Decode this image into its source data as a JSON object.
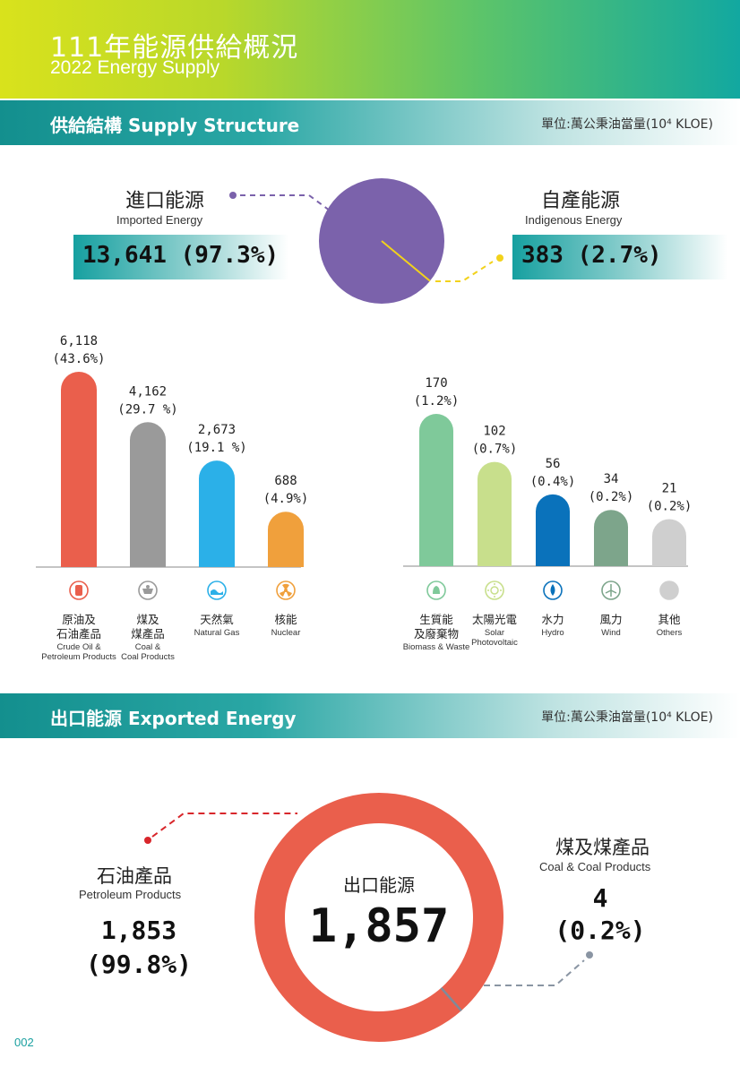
{
  "header": {
    "title_zh": "111年能源供給概況",
    "title_en": "2022 Energy Supply"
  },
  "supply_section": {
    "title": "供給結構 Supply Structure",
    "unit": "單位:萬公秉油當量(10⁴ KLOE)",
    "imported": {
      "label_zh": "進口能源",
      "label_en": "Imported Energy",
      "value_text": "13,641  (97.3%)"
    },
    "indigenous": {
      "label_zh": "自產能源",
      "label_en": "Indigenous Energy",
      "value_text": "383 (2.7%)"
    }
  },
  "export_section": {
    "title": "出口能源 Exported Energy",
    "unit": "單位:萬公秉油當量(10⁴ KLOE)",
    "center_label": "出口能源",
    "center_value": "1,857",
    "petroleum": {
      "label_zh": "石油產品",
      "label_en": "Petroleum Products",
      "value": "1,853",
      "pct": "(99.8%)"
    },
    "coal": {
      "label_zh": "煤及煤產品",
      "label_en": "Coal & Coal Products",
      "value": "4",
      "pct": "(0.2%)"
    }
  },
  "page_number": "002",
  "chart_data": [
    {
      "type": "pie",
      "categories": [
        "進口能源 Imported Energy",
        "自產能源 Indigenous Energy"
      ],
      "values": [
        13641,
        383
      ],
      "percentages": [
        97.3,
        2.7
      ],
      "colors": [
        "#7b62ab",
        "#7b62ab"
      ]
    },
    {
      "type": "bar",
      "categories": [
        "原油及石油產品",
        "煤及煤產品",
        "天然氣",
        "核能"
      ],
      "values": [
        6118,
        4162,
        2673,
        688
      ],
      "value_labels": [
        "6,118",
        "4,162",
        "2,673",
        "688"
      ],
      "percent_labels": [
        "(43.6%)",
        "(29.7 %)",
        "(19.1 %)",
        "(4.9%)"
      ],
      "category_labels_zh": [
        [
          "原油及",
          "石油產品"
        ],
        [
          "煤及",
          "煤產品"
        ],
        [
          "天然氣"
        ],
        [
          "核能"
        ]
      ],
      "category_labels_en": [
        [
          "Crude Oil &",
          "Petroleum Products"
        ],
        [
          "Coal &",
          "Coal Products"
        ],
        [
          "Natural Gas"
        ],
        [
          "Nuclear"
        ]
      ],
      "colors": [
        "#ea5f4c",
        "#9a9a9a",
        "#2bb0e8",
        "#f0a03c"
      ],
      "icons": [
        "oil-barrel-icon",
        "coal-cart-icon",
        "natural-gas-icon",
        "nuclear-icon"
      ]
    },
    {
      "type": "bar",
      "categories": [
        "生質能及廢棄物",
        "太陽光電",
        "水力",
        "風力",
        "其他"
      ],
      "values": [
        170,
        102,
        56,
        34,
        21
      ],
      "value_labels": [
        "170",
        "102",
        "56",
        "34",
        "21"
      ],
      "percent_labels": [
        "(1.2%)",
        "(0.7%)",
        "(0.4%)",
        "(0.2%)",
        "(0.2%)"
      ],
      "category_labels_zh": [
        [
          "生質能",
          "及廢棄物"
        ],
        [
          "太陽光電"
        ],
        [
          "水力"
        ],
        [
          "風力"
        ],
        [
          "其他"
        ]
      ],
      "category_labels_en": [
        [
          "Biomass & Waste"
        ],
        [
          "Solar",
          "Photovoltaic"
        ],
        [
          "Hydro"
        ],
        [
          "Wind"
        ],
        [
          "Others"
        ]
      ],
      "colors": [
        "#7fc99a",
        "#c8df8c",
        "#0a72bb",
        "#7da58b",
        "#cfcfcf"
      ],
      "icons": [
        "biomass-icon",
        "solar-icon",
        "hydro-icon",
        "wind-icon",
        "others-icon"
      ]
    },
    {
      "type": "pie",
      "categories": [
        "石油產品 Petroleum Products",
        "煤及煤產品 Coal & Coal Products"
      ],
      "values": [
        1853,
        4
      ],
      "percentages": [
        99.8,
        0.2
      ],
      "colors": [
        "#ea5f4c",
        "#ea5f4c"
      ]
    }
  ]
}
